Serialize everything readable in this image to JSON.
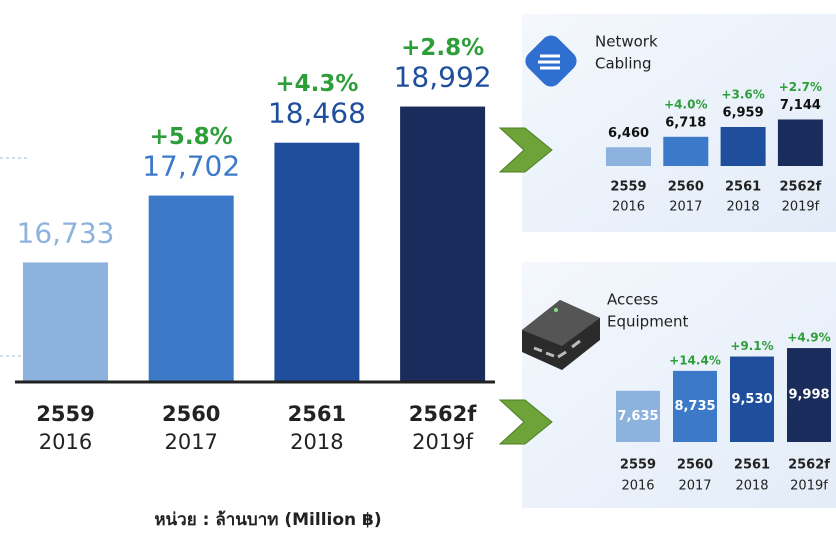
{
  "chart_data": [
    {
      "type": "bar",
      "categories": [
        [
          "2559",
          "2016"
        ],
        [
          "2560",
          "2017"
        ],
        [
          "2561",
          "2018"
        ],
        [
          "2562f",
          "2019f"
        ]
      ],
      "values": [
        16733,
        17702,
        18468,
        18992
      ],
      "value_labels": [
        "16,733",
        "17,702",
        "18,468",
        "18,992"
      ],
      "annotations": [
        null,
        "+5.8%",
        "+4.3%",
        "+2.8%"
      ],
      "colors": [
        "#8db2de",
        "#3c79c9",
        "#1f4f9c",
        "#1a2c5c"
      ],
      "ylim": [
        15000,
        20000
      ],
      "unit_label": "หน่วย : ล้านบาท (Million ฿)"
    },
    {
      "type": "bar",
      "title": [
        "Network",
        "Cabling"
      ],
      "categories": [
        [
          "2559",
          "2016"
        ],
        [
          "2560",
          "2017"
        ],
        [
          "2561",
          "2018"
        ],
        [
          "2562f",
          "2019f"
        ]
      ],
      "values": [
        6460,
        6718,
        6959,
        7144
      ],
      "value_labels": [
        "6,460",
        "6,718",
        "6,959",
        "7,144"
      ],
      "annotations": [
        null,
        "+4.0%",
        "+3.6%",
        "+2.7%"
      ],
      "colors": [
        "#8db2de",
        "#3c79c9",
        "#1f4f9c",
        "#1a2c5c"
      ],
      "ylim": [
        6000,
        7500
      ]
    },
    {
      "type": "bar",
      "title": [
        "Access",
        "Equipment"
      ],
      "categories": [
        [
          "2559",
          "2016"
        ],
        [
          "2560",
          "2017"
        ],
        [
          "2561",
          "2018"
        ],
        [
          "2562f",
          "2019f"
        ]
      ],
      "values": [
        7635,
        8735,
        9530,
        9998
      ],
      "value_labels": [
        "7,635",
        "8,735",
        "9,530",
        "9,998"
      ],
      "annotations": [
        null,
        "+14.4%",
        "+9.1%",
        "+4.9%"
      ],
      "colors": [
        "#8db2de",
        "#3c79c9",
        "#1f4f9c",
        "#1a2c5c"
      ],
      "ylim": [
        4800,
        10500
      ]
    }
  ]
}
